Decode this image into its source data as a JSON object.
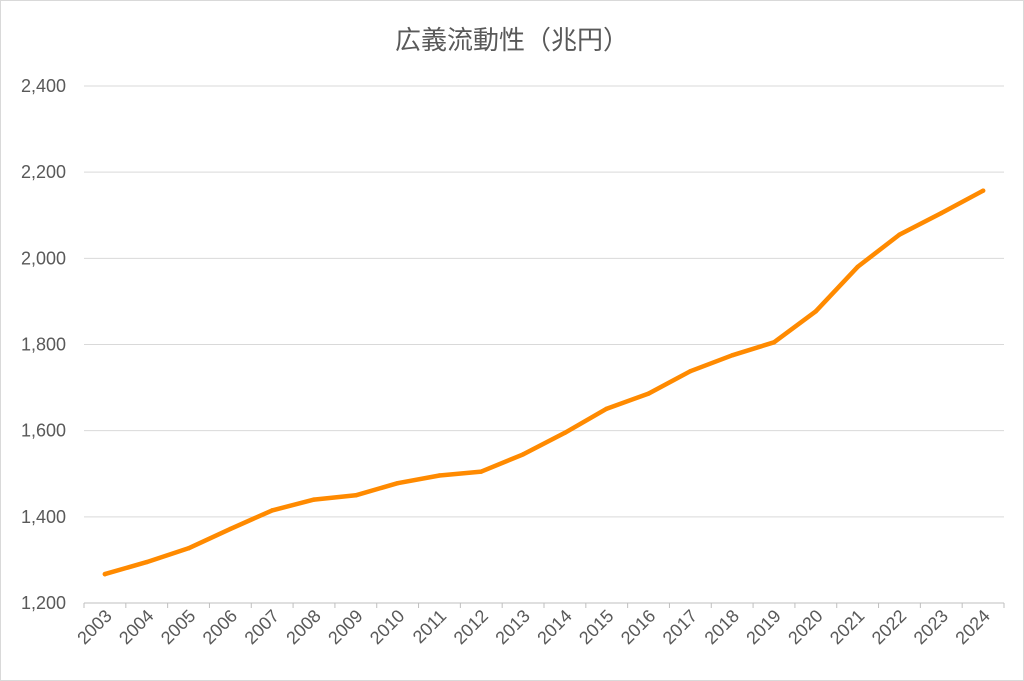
{
  "chart_data": {
    "type": "line",
    "title": "広義流動性（兆円）",
    "xlabel": "",
    "ylabel": "",
    "categories": [
      "2003",
      "2004",
      "2005",
      "2006",
      "2007",
      "2008",
      "2009",
      "2010",
      "2011",
      "2012",
      "2013",
      "2014",
      "2015",
      "2016",
      "2017",
      "2018",
      "2019",
      "2020",
      "2021",
      "2022",
      "2023",
      "2024"
    ],
    "series": [
      {
        "values": [
          1267,
          1295,
          1327,
          1372,
          1415,
          1440,
          1450,
          1478,
          1496,
          1505,
          1545,
          1595,
          1651,
          1686,
          1738,
          1775,
          1805,
          1877,
          1980,
          2055,
          2105,
          2157
        ],
        "color": "#ff8a00"
      }
    ],
    "ylim": [
      1200,
      2400
    ],
    "yticks": [
      1200,
      1400,
      1600,
      1800,
      2000,
      2200,
      2400
    ],
    "ytick_labels": [
      "1,200",
      "1,400",
      "1,600",
      "1,800",
      "2,000",
      "2,200",
      "2,400"
    ],
    "grid": true,
    "legend": "none"
  }
}
